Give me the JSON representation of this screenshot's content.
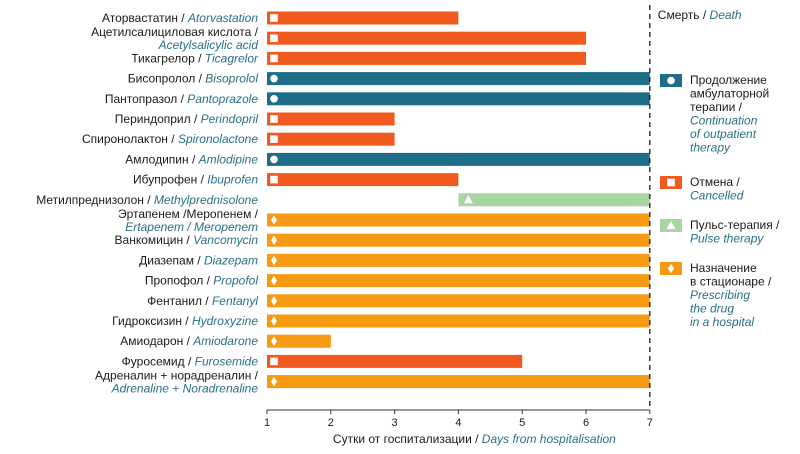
{
  "chart_data": {
    "type": "bar",
    "xlabel": {
      "ru": "Сутки от госпитализации / ",
      "en": "Days from hospitalisation"
    },
    "xlim": [
      1,
      7
    ],
    "xticks": [
      "1",
      "2",
      "3",
      "4",
      "5",
      "6",
      "7"
    ],
    "death": {
      "day": 7,
      "label_ru": "Смерть / ",
      "label_en": "Death"
    },
    "rows": [
      {
        "ru": "Аторвастатин / ",
        "en": "Atorvastation",
        "start": 1,
        "end": 4,
        "status": "cancelled"
      },
      {
        "ru": "Ацетилсалициловая кислота /",
        "en": "Acetylsalicylic acid",
        "start": 1,
        "end": 6,
        "status": "cancelled"
      },
      {
        "ru": "Тикагрелор / ",
        "en": "Ticagrelor",
        "start": 1,
        "end": 6,
        "status": "cancelled"
      },
      {
        "ru": "Бисопролол / ",
        "en": "Bisoprolol",
        "start": 1,
        "end": 7,
        "status": "continuation"
      },
      {
        "ru": "Пантопразол / ",
        "en": "Pantoprazole",
        "start": 1,
        "end": 7,
        "status": "continuation"
      },
      {
        "ru": "Периндоприл / ",
        "en": "Perindopril",
        "start": 1,
        "end": 3,
        "status": "cancelled"
      },
      {
        "ru": "Спиронолактон / ",
        "en": "Spironolactone",
        "start": 1,
        "end": 3,
        "status": "cancelled"
      },
      {
        "ru": "Амлодипин / ",
        "en": "Amlodipine",
        "start": 1,
        "end": 7,
        "status": "continuation"
      },
      {
        "ru": "Ибупрофен / ",
        "en": "Ibuprofen",
        "start": 1,
        "end": 4,
        "status": "cancelled"
      },
      {
        "ru": "Метилпреднизолон / ",
        "en": "Methylprednisolone",
        "start": 4,
        "end": 7,
        "status": "pulse"
      },
      {
        "ru": "Эртапенем /Меропенем /",
        "en": "Ertapenem / Meropenem",
        "start": 1,
        "end": 7,
        "status": "hospital"
      },
      {
        "ru": "Ванкомицин / ",
        "en": "Vancomycin",
        "start": 1,
        "end": 7,
        "status": "hospital"
      },
      {
        "ru": "Диазепам / ",
        "en": "Diazepam",
        "start": 1,
        "end": 7,
        "status": "hospital"
      },
      {
        "ru": "Пропофол / ",
        "en": "Propofol",
        "start": 1,
        "end": 7,
        "status": "hospital"
      },
      {
        "ru": "Фентанил / ",
        "en": "Fentanyl",
        "start": 1,
        "end": 7,
        "status": "hospital"
      },
      {
        "ru": "Гидроксизин / ",
        "en": "Hydroxyzine",
        "start": 1,
        "end": 7,
        "status": "hospital"
      },
      {
        "ru": "Амиодарон / ",
        "en": "Amiodarone",
        "start": 1,
        "end": 2,
        "status": "hospital"
      },
      {
        "ru": "Фуросемид / ",
        "en": "Furosemide",
        "start": 1,
        "end": 5,
        "status": "cancelled"
      },
      {
        "ru": "Адреналин + норадреналин /",
        "en": "Adrenaline + Noradrenaline",
        "start": 1,
        "end": 7,
        "status": "hospital"
      }
    ],
    "legend": [
      {
        "key": "continuation",
        "ru": [
          "Продолжение",
          "амбулаторной",
          "терапии /"
        ],
        "en": [
          "Continuation",
          "of outpatient",
          "therapy"
        ],
        "color": "#1f6e87",
        "marker": "circle"
      },
      {
        "key": "cancelled",
        "ru": [
          "Отмена /"
        ],
        "en": [
          "Cancelled"
        ],
        "color": "#f05a1e",
        "marker": "square"
      },
      {
        "key": "pulse",
        "ru": [
          "Пульс-терапия /"
        ],
        "en": [
          "Pulse therapy"
        ],
        "color": "#a8d5a2",
        "marker": "triangle"
      },
      {
        "key": "hospital",
        "ru": [
          "Назначение",
          "в стационаре /"
        ],
        "en": [
          "Prescribing",
          "the drug",
          "in a hospital"
        ],
        "color": "#f59a12",
        "marker": "diamond"
      }
    ]
  }
}
